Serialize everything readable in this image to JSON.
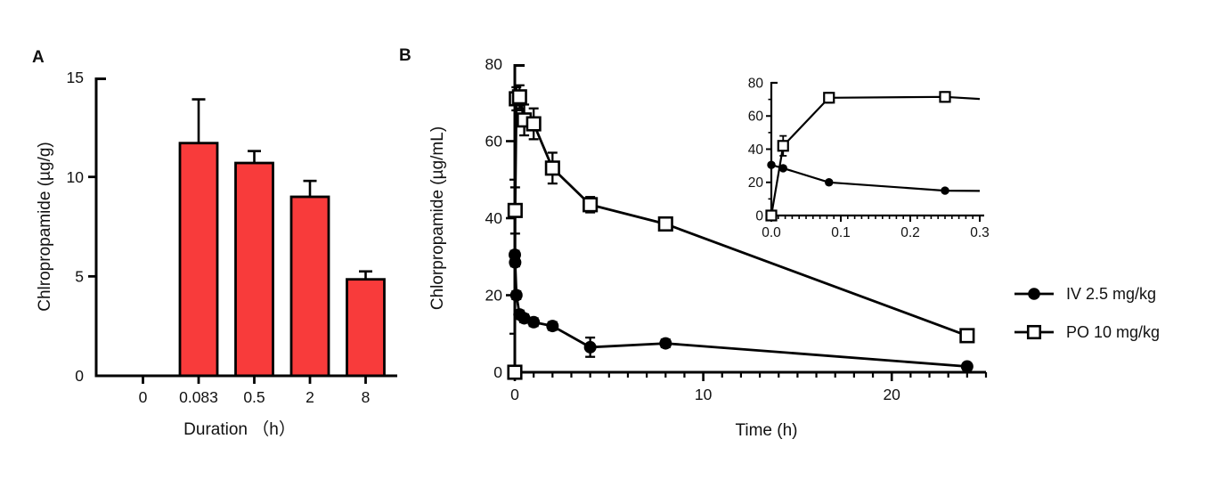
{
  "chart_data": [
    {
      "type": "bar",
      "panel_label": "A",
      "xlabel": "Duration （h）",
      "ylabel": "Chlropropamide (µg/g)",
      "categories": [
        "0",
        "0.083",
        "0.5",
        "2",
        "8"
      ],
      "values": [
        0,
        11.7,
        10.7,
        9.0,
        4.85
      ],
      "errors_sd_up": [
        0,
        2.2,
        0.6,
        0.8,
        0.4
      ],
      "ylim": [
        0,
        15
      ],
      "ytick_values": [
        0,
        5,
        10,
        15
      ],
      "ytick_labels": [
        "0",
        "5",
        "10",
        "15"
      ],
      "grid": "off",
      "bar_color": "#F83B3B",
      "bar_edge_color": "#000000"
    },
    {
      "type": "line",
      "panel_label": "B",
      "xlabel": "Time (h)",
      "ylabel": "Chlorpropamide (µg/mL)",
      "xlim": [
        0,
        25
      ],
      "ylim": [
        0,
        80
      ],
      "xtick_values": [
        0,
        10,
        20
      ],
      "xtick_labels": [
        "0",
        "10",
        "20"
      ],
      "x_minor_step": 1,
      "ytick_values": [
        0,
        20,
        40,
        60,
        80
      ],
      "ytick_labels": [
        "0",
        "20",
        "40",
        "60",
        "80"
      ],
      "y_minor_values": [
        10,
        30,
        50,
        70
      ],
      "grid": "off",
      "legend_position": "right",
      "series": [
        {
          "name": "IV 2.5 mg/kg",
          "marker": "filled-circle",
          "color": "#000000",
          "x": [
            0,
            0.017,
            0.083,
            0.25,
            0.5,
            1,
            2,
            4,
            8,
            24
          ],
          "y": [
            30.5,
            28.5,
            20,
            15,
            14,
            13,
            12,
            6.5,
            7.5,
            1.5
          ],
          "err": [
            1,
            1,
            1,
            1,
            1,
            1,
            1,
            2.5,
            1,
            0.8
          ]
        },
        {
          "name": "PO 10 mg/kg",
          "marker": "open-square",
          "color": "#000000",
          "x": [
            0,
            0.017,
            0.083,
            0.25,
            0.5,
            1,
            2,
            4,
            8,
            24
          ],
          "y": [
            0,
            42,
            71,
            71.5,
            65.5,
            64.5,
            53,
            43.5,
            38.5,
            9.5
          ],
          "err": [
            0,
            6,
            3,
            3,
            4,
            4,
            4,
            2,
            1.5,
            1
          ]
        }
      ],
      "inset": {
        "xlim": [
          0,
          0.3
        ],
        "ylim": [
          0,
          80
        ],
        "xtick_values": [
          0,
          0.1,
          0.2,
          0.3
        ],
        "xtick_labels": [
          "0.0",
          "0.1",
          "0.2",
          "0.3"
        ],
        "x_minor_step": 0.01,
        "ytick_values": [
          0,
          20,
          40,
          60,
          80
        ],
        "ytick_labels": [
          "0",
          "20",
          "40",
          "60",
          "80"
        ],
        "y_minor_values": [
          10,
          30,
          50,
          70
        ]
      }
    }
  ]
}
